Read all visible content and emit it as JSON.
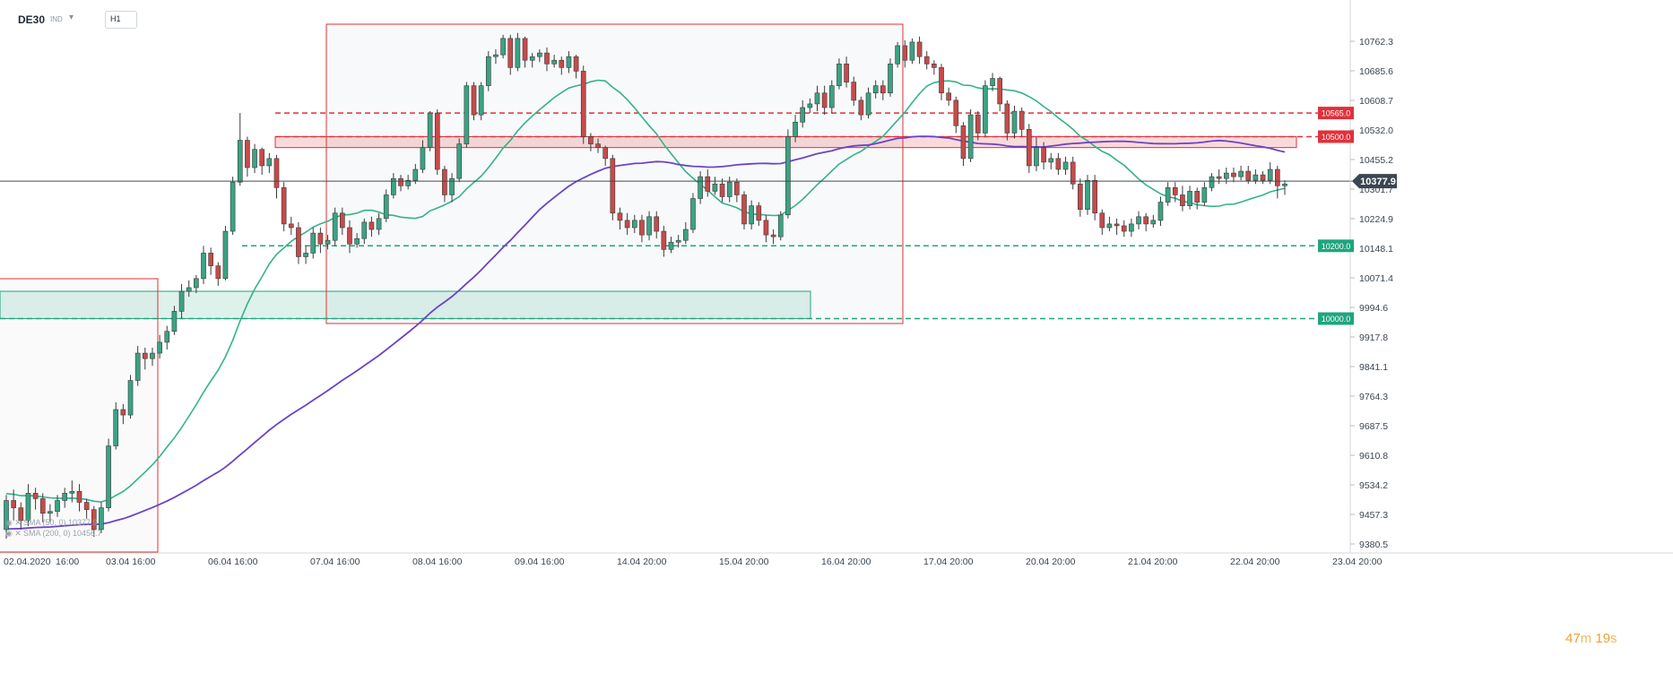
{
  "toolbar": {
    "symbol": "DE30",
    "symbol_sub": "IND",
    "timeframe": "H1",
    "chevron_icon": "chevron-down-icon"
  },
  "countdown": {
    "minutes": "47",
    "m": "m",
    "seconds": "19",
    "s": "s"
  },
  "colors": {
    "bull": "#3aa383",
    "bear": "#c74a4a",
    "sma50": "#33b38a",
    "sma200": "#6c43c6",
    "resistance": "#e0313a",
    "support": "#1fa57e"
  },
  "chart_data": {
    "type": "candlestick",
    "instrument": "DE30",
    "timeframe": "H1",
    "y_ticks": [
      "10762.3",
      "10685.6",
      "10608.7",
      "10532.0",
      "10455.2",
      "10301.7",
      "10224.9",
      "10148.1",
      "10071.4",
      "9994.6",
      "9917.8",
      "9841.1",
      "9764.3",
      "9687.5",
      "9610.8",
      "9534.2",
      "9457.3",
      "9380.5"
    ],
    "x_ticks": [
      "02.04.2020",
      "16:00",
      "03.04 16:00",
      "06.04 16:00",
      "07.04 16:00",
      "08.04 16:00",
      "09.04 16:00",
      "14.04 20:00",
      "15.04 20:00",
      "16.04 20:00",
      "17.04 20:00",
      "20.04 20:00",
      "21.04 20:00",
      "22.04 20:00",
      "23.04 20:00"
    ],
    "current_price": "10377.9",
    "horizontal_levels": [
      {
        "label": "10565.0",
        "value": 10565.0,
        "kind": "resistance"
      },
      {
        "label": "10500.0",
        "value": 10500.0,
        "kind": "resistance"
      },
      {
        "label": "10200.0",
        "value": 10200.0,
        "kind": "support"
      },
      {
        "label": "10000.0",
        "value": 10000.0,
        "kind": "support"
      }
    ],
    "zones": [
      {
        "kind": "resistance",
        "from": 10470,
        "to": 10500
      },
      {
        "kind": "support",
        "from": 10000,
        "to": 10075
      }
    ],
    "indicators": [
      {
        "label": "SMA (50, 0)",
        "value": "10377.9"
      },
      {
        "label": "SMA (200, 0)",
        "value": "10456.7"
      }
    ],
    "candles": [
      [
        9420,
        9500,
        9395,
        9515
      ],
      [
        9500,
        9480,
        9445,
        9530
      ],
      [
        9480,
        9445,
        9420,
        9495
      ],
      [
        9445,
        9520,
        9430,
        9545
      ],
      [
        9520,
        9505,
        9475,
        9535
      ],
      [
        9505,
        9465,
        9440,
        9520
      ],
      [
        9465,
        9470,
        9440,
        9490
      ],
      [
        9470,
        9500,
        9455,
        9515
      ],
      [
        9500,
        9520,
        9480,
        9535
      ],
      [
        9520,
        9525,
        9495,
        9555
      ],
      [
        9525,
        9495,
        9470,
        9545
      ],
      [
        9495,
        9475,
        9450,
        9505
      ],
      [
        9475,
        9420,
        9400,
        9485
      ],
      [
        9420,
        9480,
        9410,
        9495
      ],
      [
        9480,
        9650,
        9470,
        9670
      ],
      [
        9650,
        9750,
        9640,
        9770
      ],
      [
        9750,
        9735,
        9710,
        9765
      ],
      [
        9735,
        9830,
        9725,
        9845
      ],
      [
        9830,
        9905,
        9815,
        9925
      ],
      [
        9905,
        9890,
        9860,
        9920
      ],
      [
        9890,
        9905,
        9870,
        9920
      ],
      [
        9905,
        9935,
        9890,
        9955
      ],
      [
        9935,
        9965,
        9915,
        9980
      ],
      [
        9965,
        10020,
        9955,
        10035
      ],
      [
        10020,
        10075,
        10000,
        10095
      ],
      [
        10075,
        10085,
        10060,
        10105
      ],
      [
        10085,
        10110,
        10070,
        10120
      ],
      [
        10110,
        10180,
        10095,
        10200
      ],
      [
        10180,
        10145,
        10120,
        10195
      ],
      [
        10145,
        10110,
        10090,
        10155
      ],
      [
        10110,
        10240,
        10105,
        10255
      ],
      [
        10240,
        10375,
        10230,
        10390
      ],
      [
        10375,
        10490,
        10365,
        10565
      ],
      [
        10490,
        10415,
        10390,
        10500
      ],
      [
        10415,
        10465,
        10400,
        10480
      ],
      [
        10465,
        10420,
        10395,
        10470
      ],
      [
        10420,
        10440,
        10400,
        10455
      ],
      [
        10440,
        10360,
        10330,
        10450
      ],
      [
        10360,
        10260,
        10240,
        10375
      ],
      [
        10260,
        10250,
        10230,
        10280
      ],
      [
        10250,
        10170,
        10150,
        10265
      ],
      [
        10170,
        10180,
        10150,
        10200
      ],
      [
        10180,
        10235,
        10165,
        10250
      ],
      [
        10235,
        10205,
        10180,
        10250
      ],
      [
        10205,
        10215,
        10190,
        10230
      ],
      [
        10215,
        10290,
        10200,
        10305
      ],
      [
        10290,
        10250,
        10230,
        10305
      ],
      [
        10250,
        10205,
        10180,
        10270
      ],
      [
        10205,
        10220,
        10195,
        10235
      ],
      [
        10220,
        10265,
        10205,
        10275
      ],
      [
        10265,
        10245,
        10225,
        10280
      ],
      [
        10245,
        10275,
        10230,
        10290
      ],
      [
        10275,
        10340,
        10265,
        10355
      ],
      [
        10340,
        10385,
        10330,
        10400
      ],
      [
        10385,
        10365,
        10350,
        10395
      ],
      [
        10365,
        10380,
        10355,
        10395
      ],
      [
        10380,
        10410,
        10370,
        10425
      ],
      [
        10410,
        10470,
        10400,
        10490
      ],
      [
        10470,
        10565,
        10460,
        10570
      ],
      [
        10565,
        10410,
        10395,
        10575
      ],
      [
        10410,
        10340,
        10320,
        10420
      ],
      [
        10340,
        10385,
        10320,
        10400
      ],
      [
        10385,
        10480,
        10375,
        10495
      ],
      [
        10480,
        10640,
        10470,
        10650
      ],
      [
        10640,
        10560,
        10545,
        10650
      ],
      [
        10560,
        10640,
        10545,
        10650
      ],
      [
        10640,
        10720,
        10625,
        10735
      ],
      [
        10720,
        10725,
        10700,
        10740
      ],
      [
        10725,
        10770,
        10715,
        10780
      ],
      [
        10770,
        10690,
        10670,
        10780
      ],
      [
        10690,
        10770,
        10680,
        10785
      ],
      [
        10770,
        10710,
        10690,
        10775
      ],
      [
        10710,
        10720,
        10690,
        10730
      ],
      [
        10720,
        10730,
        10705,
        10740
      ],
      [
        10730,
        10700,
        10680,
        10745
      ],
      [
        10700,
        10710,
        10690,
        10725
      ],
      [
        10710,
        10690,
        10670,
        10720
      ],
      [
        10690,
        10720,
        10675,
        10735
      ],
      [
        10720,
        10680,
        10660,
        10725
      ],
      [
        10680,
        10500,
        10480,
        10695
      ],
      [
        10500,
        10480,
        10460,
        10510
      ],
      [
        10480,
        10470,
        10455,
        10495
      ],
      [
        10470,
        10440,
        10420,
        10475
      ],
      [
        10440,
        10290,
        10270,
        10450
      ],
      [
        10290,
        10270,
        10245,
        10305
      ],
      [
        10270,
        10250,
        10230,
        10290
      ],
      [
        10250,
        10270,
        10235,
        10285
      ],
      [
        10270,
        10230,
        10210,
        10285
      ],
      [
        10230,
        10280,
        10215,
        10295
      ],
      [
        10280,
        10240,
        10220,
        10295
      ],
      [
        10240,
        10190,
        10170,
        10255
      ],
      [
        10190,
        10210,
        10180,
        10225
      ],
      [
        10210,
        10215,
        10195,
        10230
      ],
      [
        10215,
        10245,
        10205,
        10265
      ],
      [
        10245,
        10330,
        10235,
        10345
      ],
      [
        10330,
        10390,
        10315,
        10405
      ],
      [
        10390,
        10350,
        10335,
        10410
      ],
      [
        10350,
        10370,
        10340,
        10390
      ],
      [
        10370,
        10335,
        10320,
        10385
      ],
      [
        10335,
        10375,
        10320,
        10390
      ],
      [
        10375,
        10340,
        10320,
        10385
      ],
      [
        10340,
        10260,
        10245,
        10350
      ],
      [
        10260,
        10310,
        10245,
        10325
      ],
      [
        10310,
        10270,
        10255,
        10320
      ],
      [
        10270,
        10230,
        10210,
        10285
      ],
      [
        10230,
        10225,
        10205,
        10245
      ],
      [
        10225,
        10285,
        10215,
        10295
      ],
      [
        10285,
        10500,
        10275,
        10520
      ],
      [
        10500,
        10540,
        10485,
        10560
      ],
      [
        10540,
        10580,
        10525,
        10600
      ],
      [
        10580,
        10590,
        10565,
        10605
      ],
      [
        10590,
        10620,
        10570,
        10640
      ],
      [
        10620,
        10580,
        10560,
        10640
      ],
      [
        10580,
        10640,
        10565,
        10655
      ],
      [
        10640,
        10700,
        10630,
        10715
      ],
      [
        10700,
        10650,
        10635,
        10720
      ],
      [
        10650,
        10600,
        10585,
        10665
      ],
      [
        10600,
        10560,
        10545,
        10610
      ],
      [
        10560,
        10620,
        10550,
        10635
      ],
      [
        10620,
        10640,
        10605,
        10655
      ],
      [
        10640,
        10620,
        10600,
        10655
      ],
      [
        10620,
        10700,
        10610,
        10715
      ],
      [
        10700,
        10750,
        10690,
        10760
      ],
      [
        10750,
        10710,
        10690,
        10765
      ],
      [
        10710,
        10760,
        10700,
        10770
      ],
      [
        10760,
        10720,
        10700,
        10775
      ],
      [
        10720,
        10700,
        10685,
        10735
      ],
      [
        10700,
        10690,
        10670,
        10710
      ],
      [
        10690,
        10620,
        10600,
        10700
      ],
      [
        10620,
        10600,
        10585,
        10635
      ],
      [
        10600,
        10530,
        10510,
        10610
      ],
      [
        10530,
        10440,
        10420,
        10540
      ],
      [
        10440,
        10560,
        10430,
        10575
      ],
      [
        10560,
        10510,
        10490,
        10570
      ],
      [
        10510,
        10640,
        10500,
        10655
      ],
      [
        10640,
        10660,
        10625,
        10675
      ],
      [
        10660,
        10590,
        10570,
        10665
      ],
      [
        10590,
        10510,
        10490,
        10600
      ],
      [
        10510,
        10570,
        10495,
        10585
      ],
      [
        10570,
        10520,
        10500,
        10580
      ],
      [
        10520,
        10420,
        10400,
        10535
      ],
      [
        10420,
        10470,
        10405,
        10500
      ],
      [
        10470,
        10430,
        10410,
        10485
      ],
      [
        10430,
        10440,
        10410,
        10455
      ],
      [
        10440,
        10410,
        10395,
        10455
      ],
      [
        10410,
        10430,
        10395,
        10445
      ],
      [
        10430,
        10370,
        10355,
        10445
      ],
      [
        10370,
        10300,
        10280,
        10385
      ],
      [
        10300,
        10380,
        10285,
        10395
      ],
      [
        10380,
        10290,
        10270,
        10395
      ],
      [
        10290,
        10250,
        10230,
        10300
      ],
      [
        10250,
        10260,
        10240,
        10280
      ],
      [
        10260,
        10255,
        10230,
        10275
      ],
      [
        10255,
        10240,
        10225,
        10270
      ],
      [
        10240,
        10260,
        10225,
        10275
      ],
      [
        10260,
        10280,
        10245,
        10295
      ],
      [
        10280,
        10260,
        10240,
        10290
      ],
      [
        10260,
        10270,
        10250,
        10285
      ],
      [
        10270,
        10320,
        10255,
        10335
      ],
      [
        10320,
        10360,
        10310,
        10375
      ],
      [
        10360,
        10340,
        10320,
        10375
      ],
      [
        10340,
        10310,
        10295,
        10365
      ],
      [
        10310,
        10350,
        10300,
        10365
      ],
      [
        10350,
        10320,
        10300,
        10360
      ],
      [
        10320,
        10360,
        10310,
        10375
      ],
      [
        10360,
        10390,
        10350,
        10400
      ],
      [
        10390,
        10385,
        10370,
        10410
      ],
      [
        10385,
        10400,
        10370,
        10415
      ],
      [
        10400,
        10390,
        10375,
        10415
      ],
      [
        10390,
        10405,
        10380,
        10420
      ],
      [
        10405,
        10380,
        10370,
        10420
      ],
      [
        10380,
        10395,
        10370,
        10410
      ],
      [
        10395,
        10380,
        10370,
        10405
      ],
      [
        10380,
        10410,
        10370,
        10430
      ],
      [
        10410,
        10365,
        10330,
        10420
      ],
      [
        10365,
        10370,
        10340,
        10380
      ]
    ]
  }
}
